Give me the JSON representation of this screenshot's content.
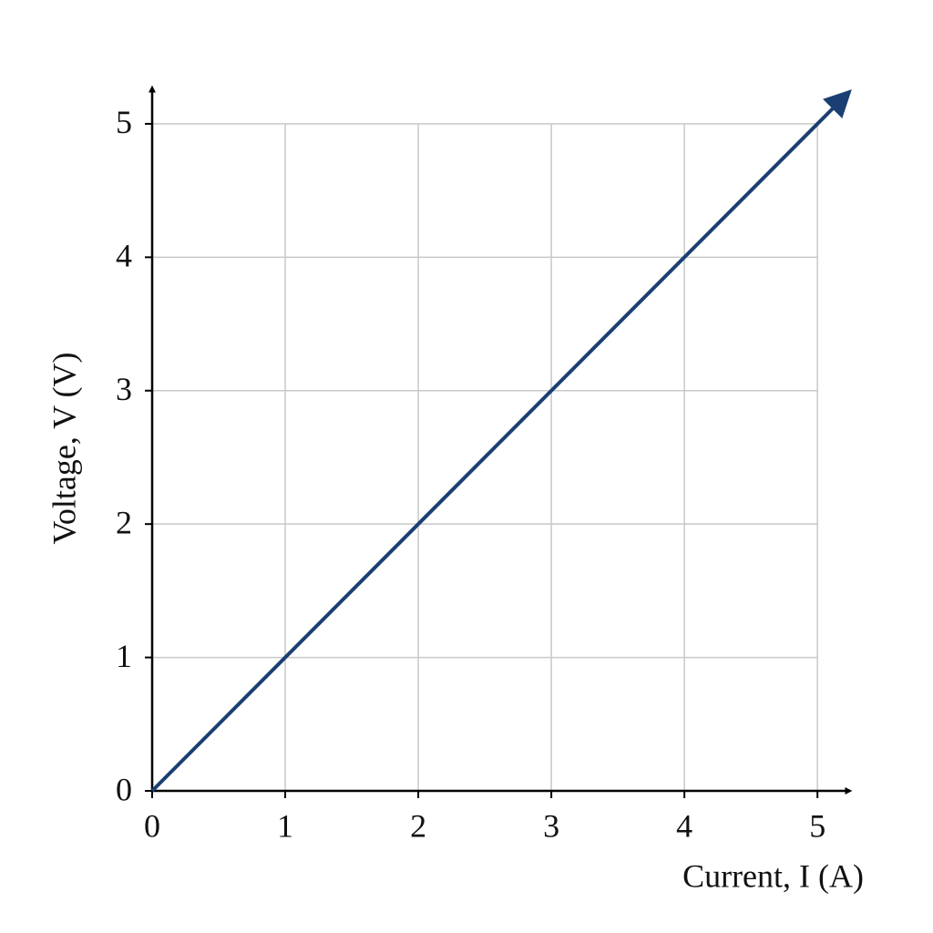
{
  "chart_data": {
    "type": "line",
    "x_label": "Current, I (A)",
    "y_label": "Voltage, V (V)",
    "x": [
      0,
      5.2
    ],
    "values": [
      0,
      5.2
    ],
    "color": "#1b3f73",
    "xlim": [
      0,
      5.3
    ],
    "ylim": [
      0,
      5.3
    ],
    "xticks": [
      0,
      1,
      2,
      3,
      4,
      5
    ],
    "yticks": [
      0,
      1,
      2,
      3,
      4,
      5
    ],
    "grid": true
  }
}
